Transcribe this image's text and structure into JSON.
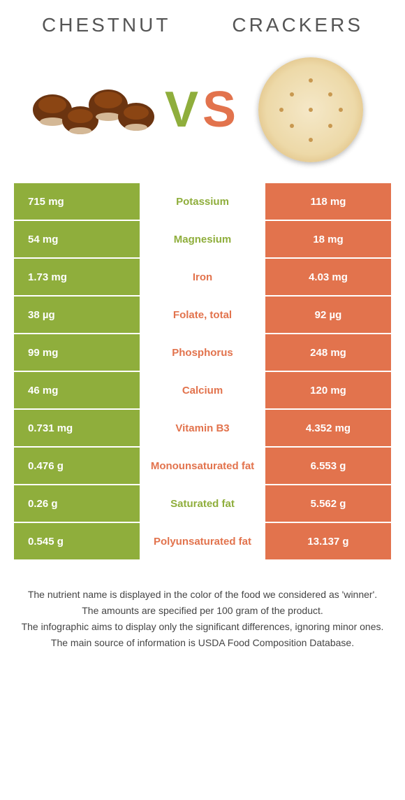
{
  "header": {
    "food1_title": "CHESTNUT",
    "food2_title": "CRACKERS"
  },
  "vs": {
    "v_letter": "V",
    "s_letter": "S"
  },
  "colors": {
    "green": "#8FAE3C",
    "orange": "#E2734D",
    "chestnut_brown": "#6B3410",
    "chestnut_dark": "#4A2208",
    "cracker_base": "#F5E8C8",
    "cracker_edge": "#D4A960"
  },
  "nutrients": [
    {
      "left": "715 mg",
      "name": "Potassium",
      "right": "118 mg",
      "winner": "left"
    },
    {
      "left": "54 mg",
      "name": "Magnesium",
      "right": "18 mg",
      "winner": "left"
    },
    {
      "left": "1.73 mg",
      "name": "Iron",
      "right": "4.03 mg",
      "winner": "right"
    },
    {
      "left": "38 µg",
      "name": "Folate, total",
      "right": "92 µg",
      "winner": "right"
    },
    {
      "left": "99 mg",
      "name": "Phosphorus",
      "right": "248 mg",
      "winner": "right"
    },
    {
      "left": "46 mg",
      "name": "Calcium",
      "right": "120 mg",
      "winner": "right"
    },
    {
      "left": "0.731 mg",
      "name": "Vitamin B3",
      "right": "4.352 mg",
      "winner": "right"
    },
    {
      "left": "0.476 g",
      "name": "Monounsaturated fat",
      "right": "6.553 g",
      "winner": "right"
    },
    {
      "left": "0.26 g",
      "name": "Saturated fat",
      "right": "5.562 g",
      "winner": "left"
    },
    {
      "left": "0.545 g",
      "name": "Polyunsaturated fat",
      "right": "13.137 g",
      "winner": "right"
    }
  ],
  "footer": {
    "line1": "The nutrient name is displayed in the color of the food we considered as 'winner'.",
    "line2": "The amounts are specified per 100 gram of the product.",
    "line3": "The infographic aims to display only the significant differences, ignoring minor ones.",
    "line4": "The main source of information is USDA Food Composition Database."
  }
}
